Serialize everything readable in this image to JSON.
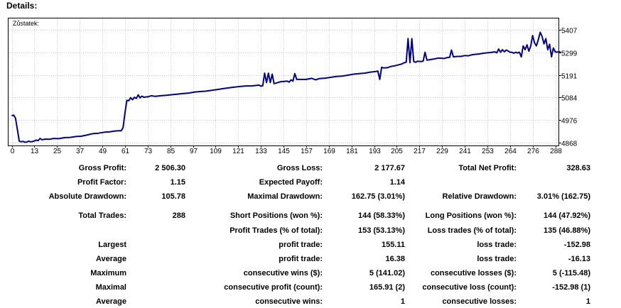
{
  "header": {
    "title": "Details:"
  },
  "chart_data": {
    "type": "line",
    "title": "",
    "inner_label": "Zůstatek:",
    "xlabel": "",
    "ylabel": "",
    "x_ticks": [
      "0",
      "13",
      "25",
      "37",
      "49",
      "61",
      "73",
      "85",
      "97",
      "109",
      "121",
      "133",
      "145",
      "157",
      "169",
      "181",
      "193",
      "205",
      "217",
      "229",
      "241",
      "253",
      "264",
      "276",
      "288"
    ],
    "y_ticks": [
      4868,
      4976,
      5084,
      5191,
      5299,
      5407
    ],
    "xlim": [
      0,
      291
    ],
    "ylim": [
      4858,
      5440
    ],
    "grid": true,
    "line_color": "#000080",
    "series": [
      {
        "name": "",
        "points": [
          [
            0,
            4996
          ],
          [
            1,
            5000
          ],
          [
            2,
            4985
          ],
          [
            3,
            4930
          ],
          [
            4,
            4875
          ],
          [
            5,
            4872
          ],
          [
            6,
            4874
          ],
          [
            7,
            4870
          ],
          [
            8,
            4871
          ],
          [
            9,
            4875
          ],
          [
            10,
            4872
          ],
          [
            11,
            4873
          ],
          [
            12,
            4876
          ],
          [
            13,
            4880
          ],
          [
            14,
            4878
          ],
          [
            15,
            4888
          ],
          [
            16,
            4882
          ],
          [
            18,
            4885
          ],
          [
            20,
            4884
          ],
          [
            22,
            4888
          ],
          [
            25,
            4887
          ],
          [
            28,
            4892
          ],
          [
            31,
            4893
          ],
          [
            34,
            4897
          ],
          [
            37,
            4899
          ],
          [
            40,
            4905
          ],
          [
            43,
            4911
          ],
          [
            46,
            4913
          ],
          [
            49,
            4918
          ],
          [
            52,
            4920
          ],
          [
            55,
            4924
          ],
          [
            57,
            4925
          ],
          [
            58,
            4925
          ],
          [
            59,
            4940
          ],
          [
            60,
            5010
          ],
          [
            61,
            5070
          ],
          [
            62,
            5068
          ],
          [
            63,
            5083
          ],
          [
            64,
            5073
          ],
          [
            65,
            5085
          ],
          [
            66,
            5079
          ],
          [
            67,
            5096
          ],
          [
            68,
            5082
          ],
          [
            69,
            5090
          ],
          [
            70,
            5085
          ],
          [
            72,
            5087
          ],
          [
            74,
            5092
          ],
          [
            76,
            5089
          ],
          [
            79,
            5092
          ],
          [
            82,
            5094
          ],
          [
            85,
            5097
          ],
          [
            88,
            5100
          ],
          [
            91,
            5103
          ],
          [
            94,
            5105
          ],
          [
            97,
            5110
          ],
          [
            100,
            5112
          ],
          [
            103,
            5114
          ],
          [
            106,
            5118
          ],
          [
            109,
            5122
          ],
          [
            112,
            5126
          ],
          [
            115,
            5130
          ],
          [
            118,
            5133
          ],
          [
            121,
            5136
          ],
          [
            124,
            5139
          ],
          [
            127,
            5139
          ],
          [
            130,
            5142
          ],
          [
            131,
            5143
          ],
          [
            132,
            5138
          ],
          [
            133,
            5140
          ],
          [
            134,
            5200
          ],
          [
            135,
            5155
          ],
          [
            136,
            5200
          ],
          [
            137,
            5155
          ],
          [
            138,
            5195
          ],
          [
            139,
            5150
          ],
          [
            140,
            5152
          ],
          [
            141,
            5155
          ],
          [
            142,
            5158
          ],
          [
            143,
            5160
          ],
          [
            144,
            5160
          ],
          [
            146,
            5162
          ],
          [
            147,
            5157
          ],
          [
            148,
            5168
          ],
          [
            149,
            5162
          ],
          [
            150,
            5198
          ],
          [
            151,
            5170
          ],
          [
            153,
            5170
          ],
          [
            156,
            5170
          ],
          [
            159,
            5175
          ],
          [
            161,
            5168
          ],
          [
            163,
            5174
          ],
          [
            166,
            5176
          ],
          [
            169,
            5180
          ],
          [
            172,
            5184
          ],
          [
            175,
            5186
          ],
          [
            178,
            5190
          ],
          [
            181,
            5195
          ],
          [
            184,
            5198
          ],
          [
            187,
            5200
          ],
          [
            190,
            5205
          ],
          [
            193,
            5208
          ],
          [
            194,
            5210
          ],
          [
            195,
            5170
          ],
          [
            196,
            5228
          ],
          [
            197,
            5225
          ],
          [
            199,
            5226
          ],
          [
            201,
            5232
          ],
          [
            203,
            5235
          ],
          [
            205,
            5240
          ],
          [
            206,
            5242
          ],
          [
            207,
            5245
          ],
          [
            208,
            5250
          ],
          [
            209,
            5252
          ],
          [
            210,
            5365
          ],
          [
            211,
            5250
          ],
          [
            212,
            5365
          ],
          [
            213,
            5255
          ],
          [
            214,
            5252
          ],
          [
            215,
            5257
          ],
          [
            217,
            5255
          ],
          [
            218,
            5258
          ],
          [
            219,
            5300
          ],
          [
            220,
            5262
          ],
          [
            222,
            5265
          ],
          [
            224,
            5268
          ],
          [
            226,
            5272
          ],
          [
            229,
            5270
          ],
          [
            231,
            5275
          ],
          [
            232,
            5275
          ],
          [
            233,
            5310
          ],
          [
            234,
            5278
          ],
          [
            236,
            5280
          ],
          [
            238,
            5280
          ],
          [
            240,
            5284
          ],
          [
            242,
            5283
          ],
          [
            244,
            5288
          ],
          [
            246,
            5290
          ],
          [
            248,
            5292
          ],
          [
            250,
            5295
          ],
          [
            252,
            5297
          ],
          [
            254,
            5299
          ],
          [
            256,
            5302
          ],
          [
            257,
            5297
          ],
          [
            258,
            5315
          ],
          [
            259,
            5300
          ],
          [
            260,
            5312
          ],
          [
            261,
            5302
          ],
          [
            262,
            5310
          ],
          [
            263,
            5306
          ],
          [
            264,
            5300
          ],
          [
            265,
            5300
          ],
          [
            266,
            5295
          ],
          [
            267,
            5300
          ],
          [
            268,
            5296
          ],
          [
            269,
            5300
          ],
          [
            270,
            5278
          ],
          [
            271,
            5330
          ],
          [
            272,
            5312
          ],
          [
            273,
            5335
          ],
          [
            274,
            5305
          ],
          [
            275,
            5330
          ],
          [
            276,
            5380
          ],
          [
            277,
            5345
          ],
          [
            278,
            5330
          ],
          [
            279,
            5360
          ],
          [
            280,
            5395
          ],
          [
            281,
            5375
          ],
          [
            282,
            5340
          ],
          [
            283,
            5365
          ],
          [
            284,
            5312
          ],
          [
            285,
            5338
          ],
          [
            286,
            5278
          ],
          [
            287,
            5320
          ],
          [
            288,
            5302
          ],
          [
            289,
            5300
          ],
          [
            290,
            5303
          ],
          [
            291,
            5298
          ]
        ]
      }
    ]
  },
  "stats": {
    "gross_profit_label": "Gross Profit:",
    "gross_profit_value": "2 506.30",
    "gross_loss_label": "Gross Loss:",
    "gross_loss_value": "2 177.67",
    "total_net_profit_label": "Total Net Profit:",
    "total_net_profit_value": "328.63",
    "profit_factor_label": "Profit Factor:",
    "profit_factor_value": "1.15",
    "expected_payoff_label": "Expected Payoff:",
    "expected_payoff_value": "1.14",
    "absolute_drawdown_label": "Absolute Drawdown:",
    "absolute_drawdown_value": "105.78",
    "maximal_drawdown_label": "Maximal Drawdown:",
    "maximal_drawdown_value": "162.75 (3.01%)",
    "relative_drawdown_label": "Relative Drawdown:",
    "relative_drawdown_value": "3.01% (162.75)",
    "total_trades_label": "Total Trades:",
    "total_trades_value": "288",
    "short_positions_label": "Short Positions (won %):",
    "short_positions_value": "144 (58.33%)",
    "long_positions_label": "Long Positions (won %):",
    "long_positions_value": "144 (47.92%)",
    "profit_trades_label": "Profit Trades (% of total):",
    "profit_trades_value": "153 (53.13%)",
    "loss_trades_label": "Loss trades (% of total):",
    "loss_trades_value": "135 (46.88%)",
    "largest_label": "Largest",
    "largest_profit_label": "profit trade:",
    "largest_profit_value": "155.11",
    "largest_loss_label": "loss trade:",
    "largest_loss_value": "-152.98",
    "average_label": "Average",
    "average_profit_label": "profit trade:",
    "average_profit_value": "16.38",
    "average_loss_label": "loss trade:",
    "average_loss_value": "-16.13",
    "maximum_label": "Maximum",
    "max_consec_wins_label": "consecutive wins ($):",
    "max_consec_wins_value": "5 (141.02)",
    "max_consec_losses_label": "consecutive losses ($):",
    "max_consec_losses_value": "5 (-115.48)",
    "maximal_label": "Maximal",
    "maximal_consec_profit_label": "consecutive profit (count):",
    "maximal_consec_profit_value": "165.91 (2)",
    "maximal_consec_loss_label": "consecutive loss (count):",
    "maximal_consec_loss_value": "-152.98 (1)",
    "average2_label": "Average",
    "avg_consec_wins_label": "consecutive wins:",
    "avg_consec_wins_value": "1",
    "avg_consec_losses_label": "consecutive losses:",
    "avg_consec_losses_value": "1"
  }
}
